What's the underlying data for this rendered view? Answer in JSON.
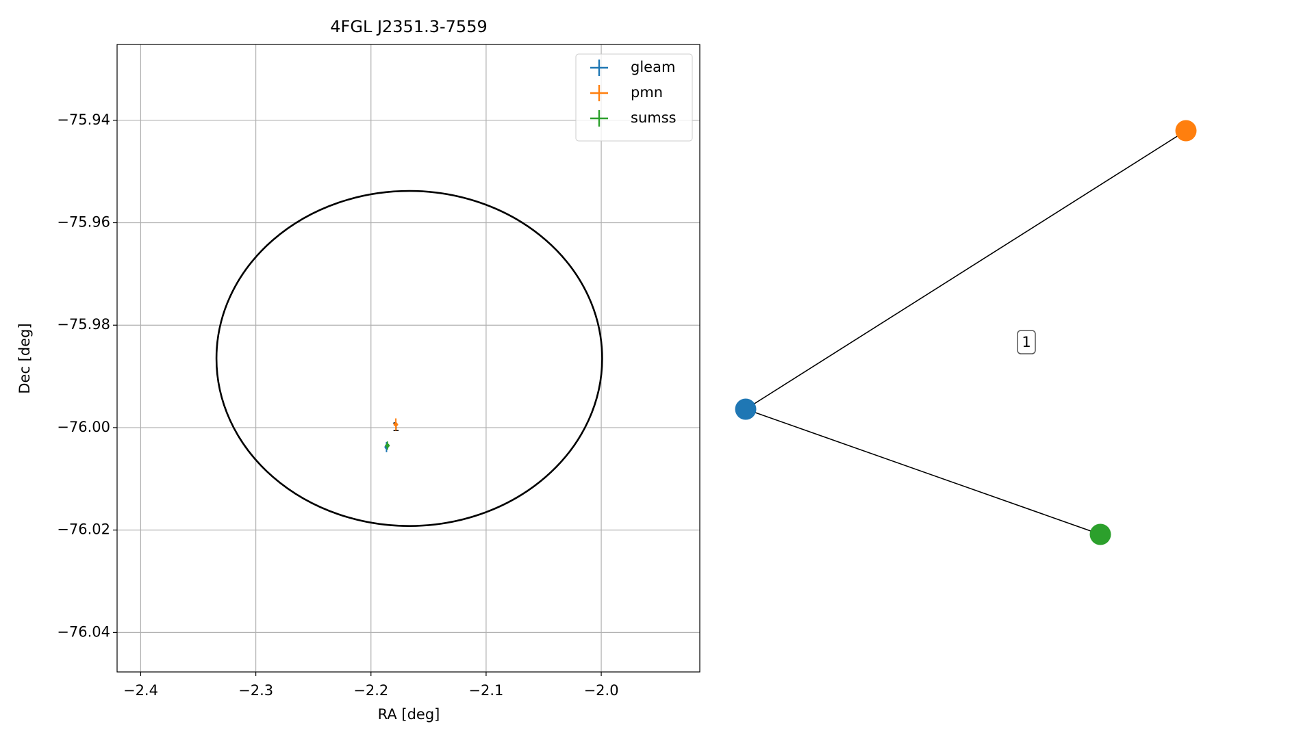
{
  "chart_data": {
    "type": "errorbar",
    "title": "4FGL J2351.3-7559",
    "x_label": "RA [deg]",
    "y_label": "Dec [deg]",
    "xlim": [
      -2.4205,
      -1.9144
    ],
    "ylim": [
      -76.0477,
      -75.9252
    ],
    "xticks": [
      {
        "value": -2.4,
        "label": "−2.4"
      },
      {
        "value": -2.3,
        "label": "−2.3"
      },
      {
        "value": -2.2,
        "label": "−2.2"
      },
      {
        "value": -2.1,
        "label": "−2.1"
      },
      {
        "value": -2.0,
        "label": "−2.0"
      }
    ],
    "yticks": [
      {
        "value": -75.94,
        "label": "−75.94"
      },
      {
        "value": -75.96,
        "label": "−75.96"
      },
      {
        "value": -75.98,
        "label": "−75.98"
      },
      {
        "value": -76.0,
        "label": "−76.00"
      },
      {
        "value": -76.02,
        "label": "−76.02"
      },
      {
        "value": -76.04,
        "label": "−76.04"
      }
    ],
    "grid": true,
    "legend": "upper right",
    "series": [
      {
        "name": "gleam",
        "color": "#1f77b4",
        "x": [
          -2.1865
        ],
        "y": [
          -76.0038
        ],
        "xerr": [
          0.001
        ],
        "yerr": [
          0.001
        ]
      },
      {
        "name": "pmn",
        "color": "#ff7f0e",
        "x": [
          -2.1784
        ],
        "y": [
          -75.9994
        ],
        "xerr": [
          0.002
        ],
        "yerr": [
          0.0012
        ]
      },
      {
        "name": "sumss",
        "color": "#2ca02c",
        "x": [
          -2.1857
        ],
        "y": [
          -76.0035
        ],
        "xerr": [
          0.002
        ],
        "yerr": [
          0.0008
        ]
      }
    ],
    "annotations": [
      {
        "text": "1",
        "x": -2.1784,
        "y": -76.0
      }
    ],
    "ellipse": {
      "center": [
        -2.1667,
        -75.9865
      ],
      "semi_axes": [
        0.1675,
        0.0327
      ],
      "color": "#000000"
    }
  },
  "graph": {
    "nodes": [
      {
        "color": "#1f77b4"
      },
      {
        "color": "#ff7f0e"
      },
      {
        "color": "#2ca02c"
      }
    ],
    "edges": [
      [
        0,
        1
      ],
      [
        0,
        2
      ]
    ],
    "edge_label": "1"
  }
}
